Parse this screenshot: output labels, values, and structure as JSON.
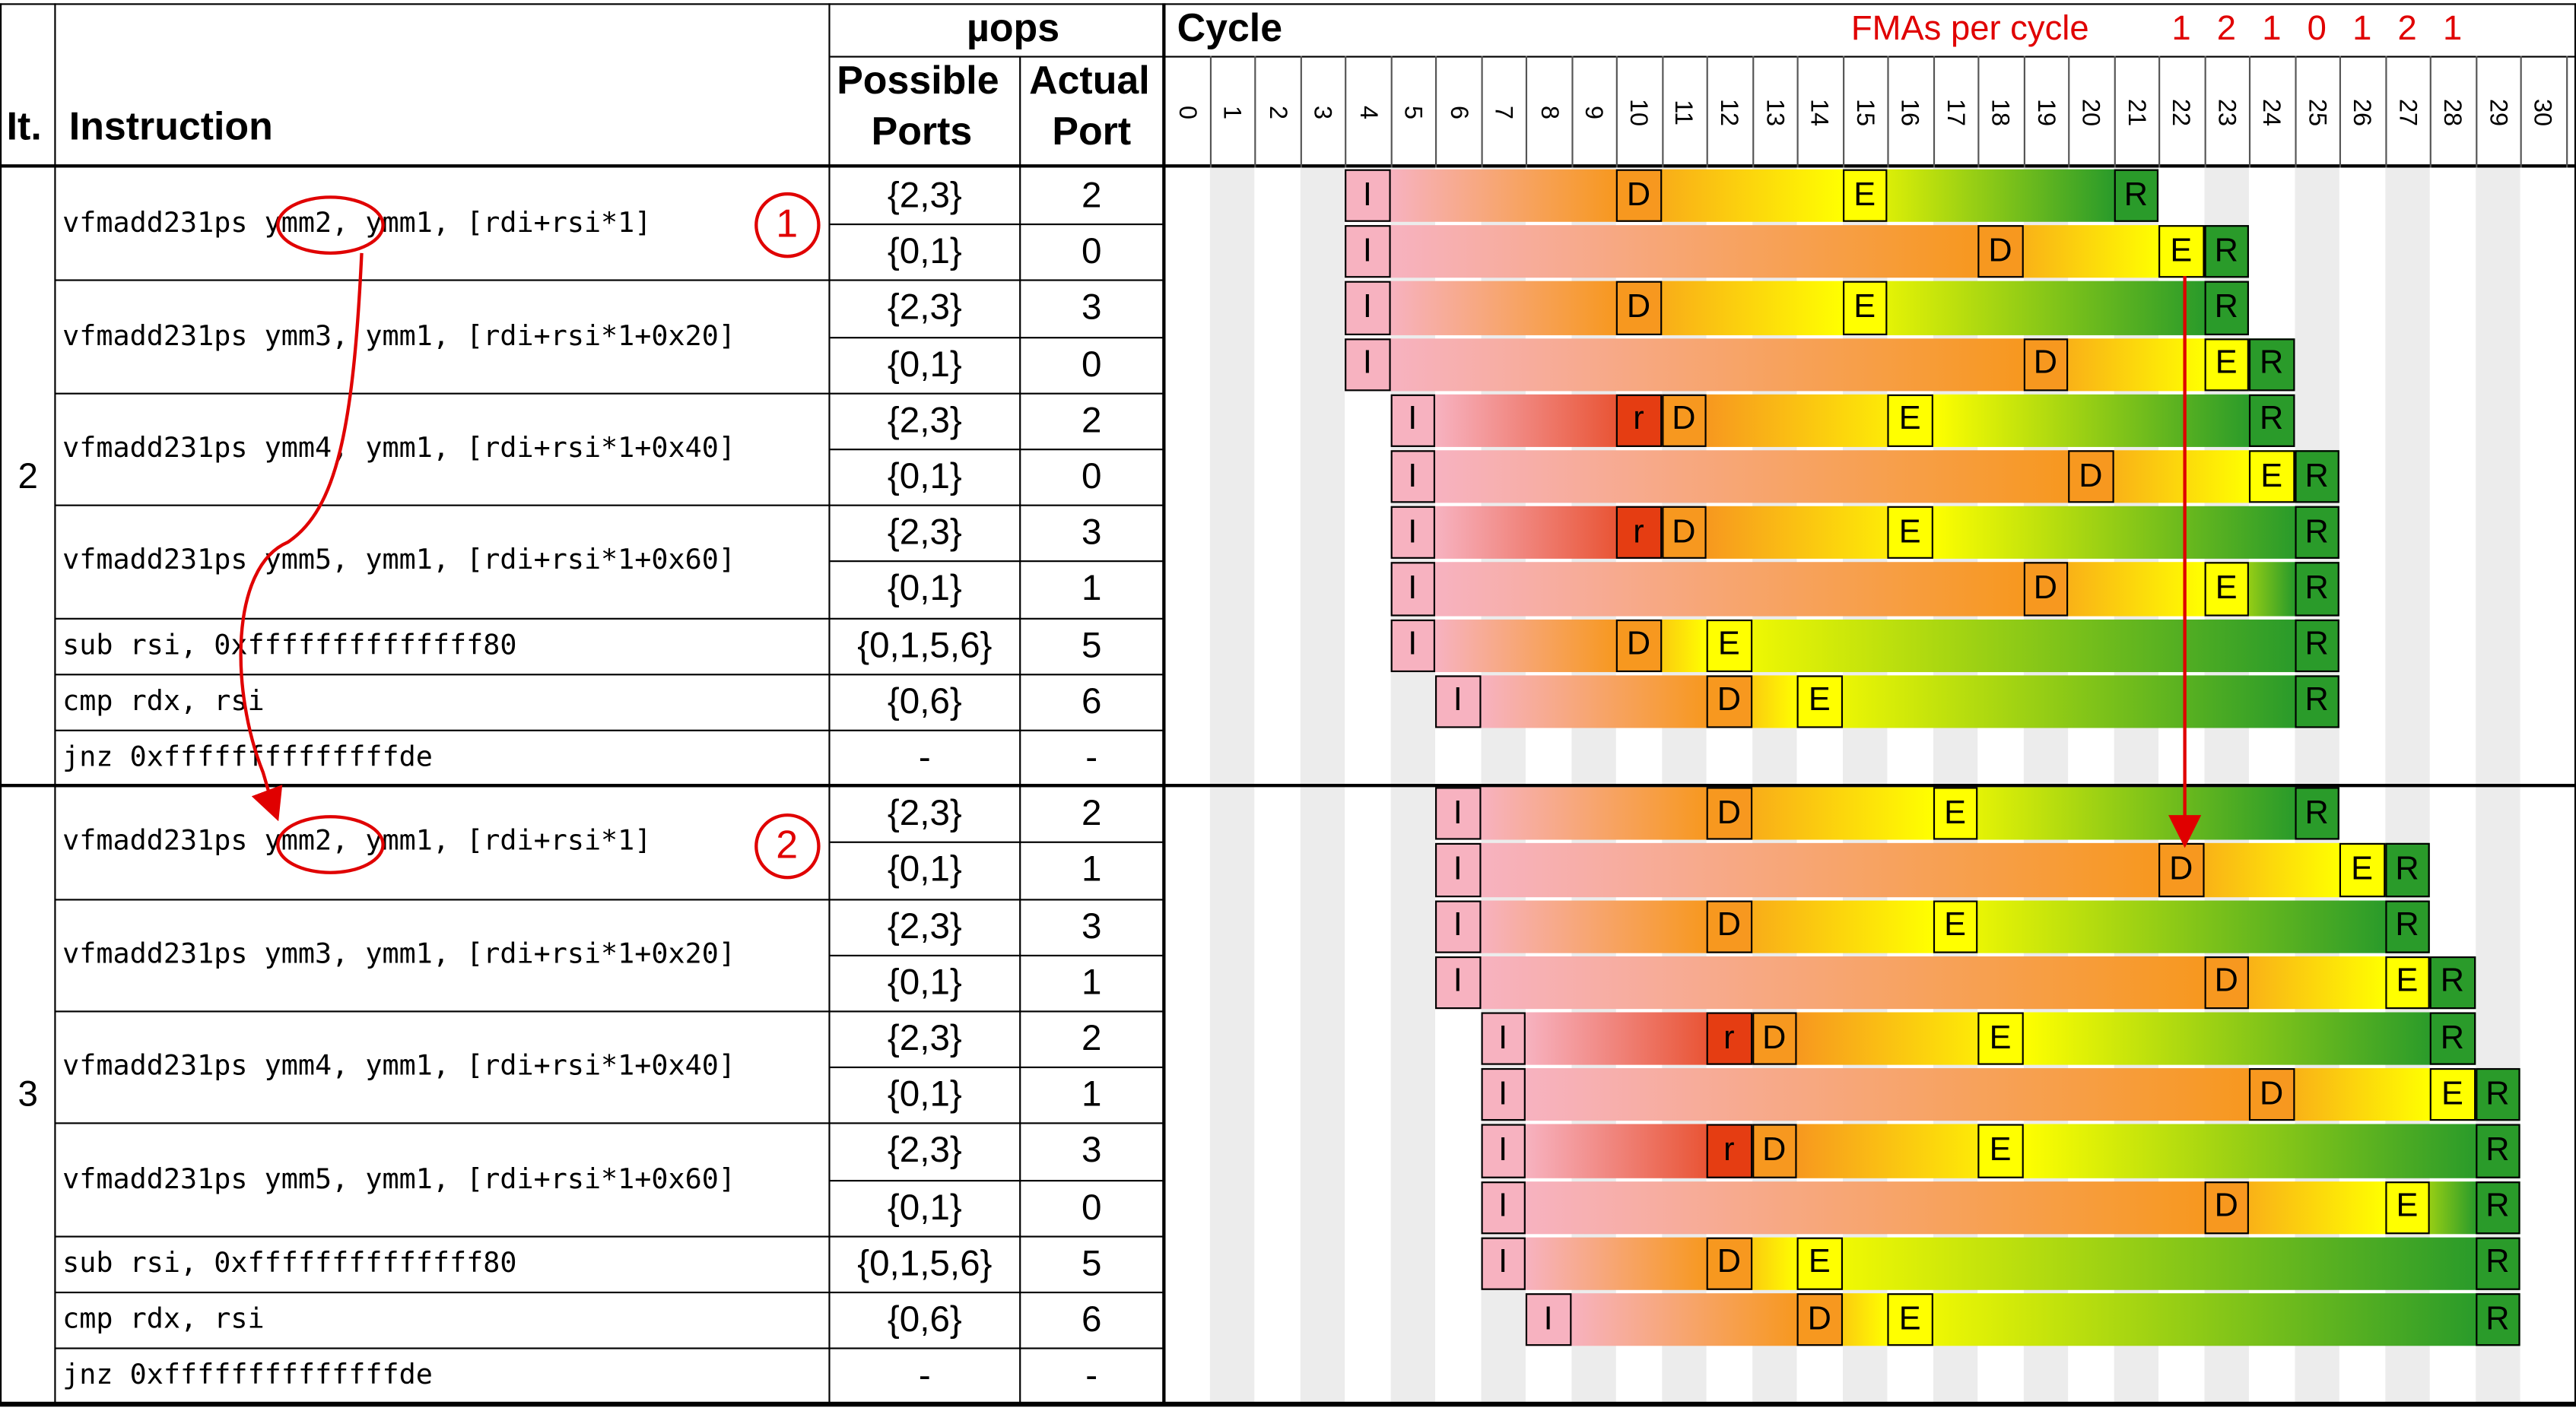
{
  "headers": {
    "it": "It.",
    "instruction": "Instruction",
    "uops": "µops",
    "possible_ports_1": "Possible",
    "possible_ports_2": "Ports",
    "actual_port_1": "Actual",
    "actual_port_2": "Port",
    "cycle": "Cycle",
    "fmas_per_cycle": "FMAs per cycle"
  },
  "cycles": [
    "0",
    "1",
    "2",
    "3",
    "4",
    "5",
    "6",
    "7",
    "8",
    "9",
    "10",
    "11",
    "12",
    "13",
    "14",
    "15",
    "16",
    "17",
    "18",
    "19",
    "20",
    "21",
    "22",
    "23",
    "24",
    "25",
    "26",
    "27",
    "28",
    "29",
    "30"
  ],
  "fmas_per_cycle_values": [
    {
      "cycle": 22,
      "value": "1"
    },
    {
      "cycle": 23,
      "value": "2"
    },
    {
      "cycle": 24,
      "value": "1"
    },
    {
      "cycle": 25,
      "value": "0"
    },
    {
      "cycle": 26,
      "value": "1"
    },
    {
      "cycle": 27,
      "value": "2"
    },
    {
      "cycle": 28,
      "value": "1"
    }
  ],
  "circle_labels": [
    "1",
    "2"
  ],
  "colors": {
    "pink": "#f7b2c0",
    "red": "#e53d12",
    "orange": "#f7981f",
    "yellow": "#ffff00",
    "green": "#2a9b2a",
    "grid_shade": "#ececec",
    "annotation": "#e00000"
  },
  "iterations": [
    {
      "label": "2",
      "instructions": [
        {
          "text": "vfmadd231ps ymm2, ymm1, [rdi+rsi*1]",
          "uops": [
            {
              "ports": "{2,3}",
              "actual": "2",
              "stages": {
                "I": 4,
                "D": 10,
                "E": 15,
                "R": 21
              }
            },
            {
              "ports": "{0,1}",
              "actual": "0",
              "stages": {
                "I": 4,
                "D": 18,
                "E": 22,
                "R": 23
              }
            }
          ]
        },
        {
          "text": "vfmadd231ps ymm3, ymm1, [rdi+rsi*1+0x20]",
          "uops": [
            {
              "ports": "{2,3}",
              "actual": "3",
              "stages": {
                "I": 4,
                "D": 10,
                "E": 15,
                "R": 23
              }
            },
            {
              "ports": "{0,1}",
              "actual": "0",
              "stages": {
                "I": 4,
                "D": 19,
                "E": 23,
                "R": 24
              }
            }
          ]
        },
        {
          "text": "vfmadd231ps ymm4, ymm1, [rdi+rsi*1+0x40]",
          "uops": [
            {
              "ports": "{2,3}",
              "actual": "2",
              "stages": {
                "I": 5,
                "r": 10,
                "D": 11,
                "E": 16,
                "R": 24
              }
            },
            {
              "ports": "{0,1}",
              "actual": "0",
              "stages": {
                "I": 5,
                "D": 20,
                "E": 24,
                "R": 25
              }
            }
          ]
        },
        {
          "text": "vfmadd231ps ymm5, ymm1, [rdi+rsi*1+0x60]",
          "uops": [
            {
              "ports": "{2,3}",
              "actual": "3",
              "stages": {
                "I": 5,
                "r": 10,
                "D": 11,
                "E": 16,
                "R": 25
              }
            },
            {
              "ports": "{0,1}",
              "actual": "1",
              "stages": {
                "I": 5,
                "D": 19,
                "E": 23,
                "R": 25
              }
            }
          ]
        },
        {
          "text": "sub rsi, 0xffffffffffffff80",
          "uops": [
            {
              "ports": "{0,1,5,6}",
              "actual": "5",
              "stages": {
                "I": 5,
                "D": 10,
                "E": 12,
                "R": 25
              }
            }
          ]
        },
        {
          "text": "cmp rdx, rsi",
          "uops": [
            {
              "ports": "{0,6}",
              "actual": "6",
              "stages": {
                "I": 6,
                "D": 12,
                "E": 14,
                "R": 25
              }
            }
          ]
        },
        {
          "text": "jnz 0xffffffffffffffde",
          "uops": [
            {
              "ports": "-",
              "actual": "-",
              "stages": {}
            }
          ]
        }
      ]
    },
    {
      "label": "3",
      "instructions": [
        {
          "text": "vfmadd231ps ymm2, ymm1, [rdi+rsi*1]",
          "uops": [
            {
              "ports": "{2,3}",
              "actual": "2",
              "stages": {
                "I": 6,
                "D": 12,
                "E": 17,
                "R": 25
              }
            },
            {
              "ports": "{0,1}",
              "actual": "1",
              "stages": {
                "I": 6,
                "D": 22,
                "E": 26,
                "R": 27
              }
            }
          ]
        },
        {
          "text": "vfmadd231ps ymm3, ymm1, [rdi+rsi*1+0x20]",
          "uops": [
            {
              "ports": "{2,3}",
              "actual": "3",
              "stages": {
                "I": 6,
                "D": 12,
                "E": 17,
                "R": 27
              }
            },
            {
              "ports": "{0,1}",
              "actual": "1",
              "stages": {
                "I": 6,
                "D": 23,
                "E": 27,
                "R": 28
              }
            }
          ]
        },
        {
          "text": "vfmadd231ps ymm4, ymm1, [rdi+rsi*1+0x40]",
          "uops": [
            {
              "ports": "{2,3}",
              "actual": "2",
              "stages": {
                "I": 7,
                "r": 12,
                "D": 13,
                "E": 18,
                "R": 28
              }
            },
            {
              "ports": "{0,1}",
              "actual": "1",
              "stages": {
                "I": 7,
                "D": 24,
                "E": 28,
                "R": 29
              }
            }
          ]
        },
        {
          "text": "vfmadd231ps ymm5, ymm1, [rdi+rsi*1+0x60]",
          "uops": [
            {
              "ports": "{2,3}",
              "actual": "3",
              "stages": {
                "I": 7,
                "r": 12,
                "D": 13,
                "E": 18,
                "R": 29
              }
            },
            {
              "ports": "{0,1}",
              "actual": "0",
              "stages": {
                "I": 7,
                "D": 23,
                "E": 27,
                "R": 29
              }
            }
          ]
        },
        {
          "text": "sub rsi, 0xffffffffffffff80",
          "uops": [
            {
              "ports": "{0,1,5,6}",
              "actual": "5",
              "stages": {
                "I": 7,
                "D": 12,
                "E": 14,
                "R": 29
              }
            }
          ]
        },
        {
          "text": "cmp rdx, rsi",
          "uops": [
            {
              "ports": "{0,6}",
              "actual": "6",
              "stages": {
                "I": 8,
                "D": 14,
                "E": 16,
                "R": 29
              }
            }
          ]
        },
        {
          "text": "jnz 0xffffffffffffffde",
          "uops": [
            {
              "ports": "-",
              "actual": "-",
              "stages": {}
            }
          ]
        }
      ]
    }
  ]
}
